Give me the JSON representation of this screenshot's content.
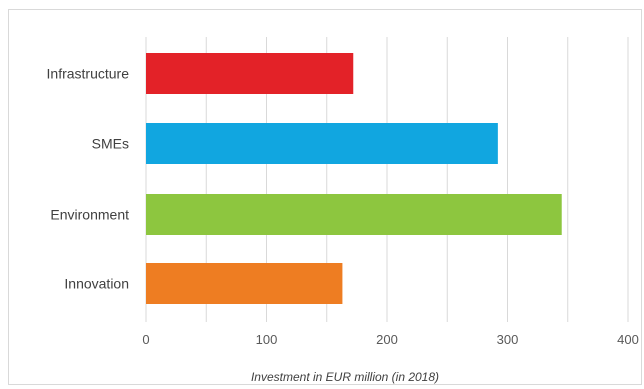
{
  "chart_data": {
    "type": "bar",
    "orientation": "horizontal",
    "categories": [
      "Infrastructure",
      "SMEs",
      "Environment",
      "Innovation"
    ],
    "values": [
      172,
      292,
      345,
      163
    ],
    "colors": [
      "#e32228",
      "#11a6e0",
      "#8dc63f",
      "#ee7d22"
    ],
    "xlabel": "Investment in EUR million (in 2018)",
    "xlim": [
      0,
      400
    ],
    "xticks": [
      0,
      100,
      200,
      300,
      400
    ],
    "grid": true
  }
}
